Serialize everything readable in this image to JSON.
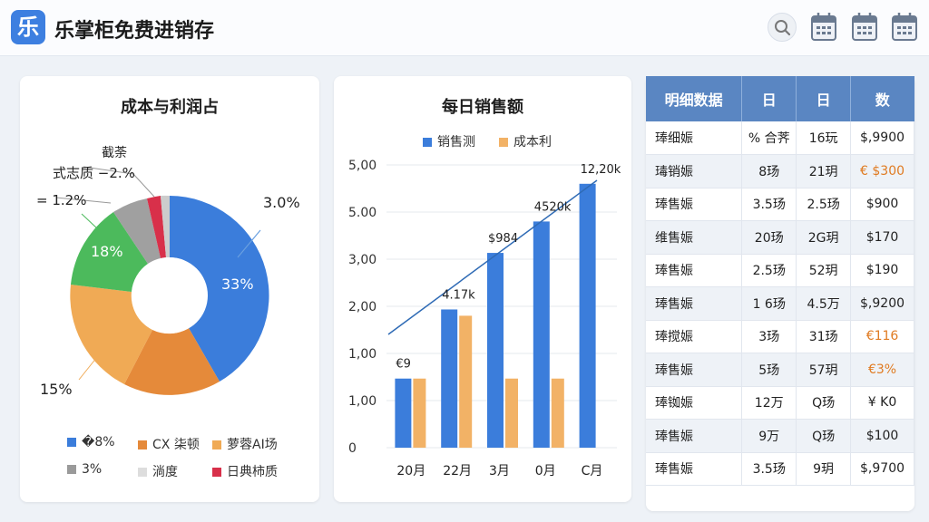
{
  "app": {
    "title": "乐掌柜免费进销存",
    "logo_char": "乐"
  },
  "toolbar": {
    "icons": [
      "search-icon",
      "calendar-icon",
      "calendar-icon",
      "calendar-icon"
    ]
  },
  "pie_card": {
    "title": "成本与利润占",
    "labels": {
      "top_small": "截荼",
      "minus": "式志质 −2.%",
      "left_small": "= 1.2%",
      "right": "3.0%",
      "green_inside": "18%",
      "blue_inside": "33%",
      "orange_left": "15%"
    },
    "legend": [
      {
        "label": "�8%",
        "color": "#3b7ddb"
      },
      {
        "label": "CX 柒顿",
        "color": "#e58a3a"
      },
      {
        "label": "萝蓉AI场",
        "color": "#f0aa55"
      },
      {
        "label": "3%",
        "color": "#9a9a9a"
      },
      {
        "label": "淌度",
        "color": "#dddddd"
      },
      {
        "label": "日典柿质",
        "color": "#d8304a"
      }
    ]
  },
  "chart_data": {
    "type": "bar",
    "title": "每日销售额",
    "categories": [
      "20月",
      "22月",
      "3月",
      "0月",
      "C月"
    ],
    "series": [
      {
        "name": "销售测",
        "values": [
          1.1,
          2.2,
          3.1,
          3.6,
          4.2
        ],
        "color": "#3b7ddb"
      },
      {
        "name": "成本利",
        "values": [
          1.1,
          2.1,
          1.1,
          1.1,
          0.0
        ],
        "color": "#f2b266"
      }
    ],
    "y_tick_labels": [
      "0",
      "1,00",
      "1,00",
      "2,00",
      "3,00",
      "5.00",
      "5,00"
    ],
    "annotations": [
      "€9",
      "4.17k",
      "$984",
      "4520k",
      "12,20k"
    ],
    "trend_line": true,
    "legend_position": "top"
  },
  "detail_table": {
    "headers": [
      "明细数据",
      "日",
      "日",
      "数"
    ],
    "rows": [
      [
        "琫细娠",
        "% 合荠",
        "16玩",
        "$,9900"
      ],
      [
        "瑇销娠",
        "8玚",
        "21玥",
        "€ $300"
      ],
      [
        "琫售娠",
        "3.5玚",
        "2.5玚",
        "$900"
      ],
      [
        "维售娠",
        "20玚",
        "2G玥",
        "$170"
      ],
      [
        "琫售娠",
        "2.5玚",
        "52玥",
        "$190"
      ],
      [
        "琫售娠",
        "1 6玚",
        "4.5万",
        "$,9200"
      ],
      [
        "琫搅娠",
        "3玚",
        "31玚",
        "€116"
      ],
      [
        "琫售娠",
        "5玚",
        "57玥",
        "€3%"
      ],
      [
        "琫铷娠",
        "12万",
        "Q玚",
        "¥ K0"
      ],
      [
        "琫售娠",
        "9万",
        "Q玚",
        "$100"
      ],
      [
        "琫售娠",
        "3.5玚",
        "9玥",
        "$,9700"
      ]
    ],
    "orange_cells": [
      [
        1,
        3
      ],
      [
        6,
        3
      ],
      [
        7,
        3
      ]
    ]
  }
}
